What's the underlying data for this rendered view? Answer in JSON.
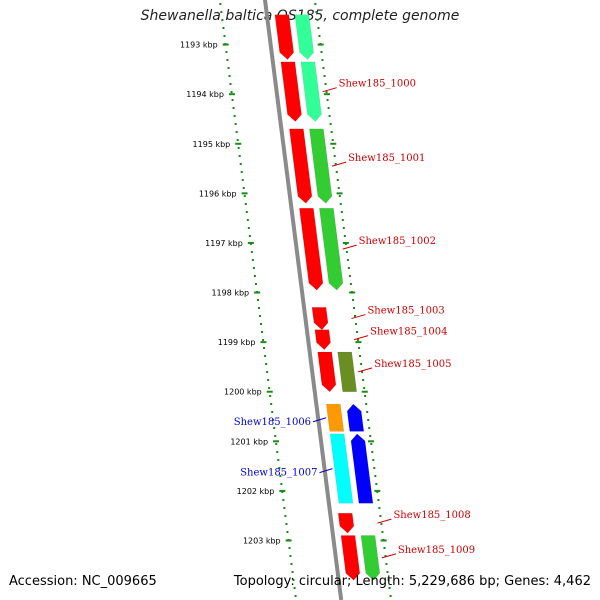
{
  "title": "Shewanella baltica OS185, complete genome",
  "footer": {
    "accession": "Accession: NC_009665",
    "summary": "Topology: circular; Length: 5,229,686 bp; Genes: 4,462"
  },
  "colors": {
    "backbone": "#8a8a8a",
    "tick": "#1a8a1a",
    "label_red": "#cc0000",
    "label_blue": "#0000cc"
  },
  "scale": {
    "unit": "kbp",
    "ticks": [
      {
        "kbp": 1193,
        "label": "1193 kbp"
      },
      {
        "kbp": 1194,
        "label": "1194 kbp"
      },
      {
        "kbp": 1195,
        "label": "1195 kbp"
      },
      {
        "kbp": 1196,
        "label": "1196 kbp"
      },
      {
        "kbp": 1197,
        "label": "1197 kbp"
      },
      {
        "kbp": 1198,
        "label": "1198 kbp"
      },
      {
        "kbp": 1199,
        "label": "1199 kbp"
      },
      {
        "kbp": 1200,
        "label": "1200 kbp"
      },
      {
        "kbp": 1201,
        "label": "1201 kbp"
      },
      {
        "kbp": 1202,
        "label": "1202 kbp"
      },
      {
        "kbp": 1203,
        "label": "1203 kbp"
      }
    ]
  },
  "genes": [
    {
      "label": "",
      "track": "red",
      "start": 1192.4,
      "end": 1193.3,
      "color": "#ff0000",
      "dir": "down"
    },
    {
      "label": "",
      "track": "green",
      "start": 1192.4,
      "end": 1193.3,
      "color": "#33ff99",
      "dir": "down"
    },
    {
      "label": "Shew185_1000",
      "track": "red",
      "start": 1193.35,
      "end": 1194.55,
      "color": "#ff0000",
      "dir": "down",
      "label_color": "#cc0000"
    },
    {
      "label": "",
      "track": "green",
      "start": 1193.35,
      "end": 1194.55,
      "color": "#33ff99",
      "dir": "down"
    },
    {
      "label": "Shew185_1001",
      "track": "red",
      "start": 1194.7,
      "end": 1196.2,
      "color": "#ff0000",
      "dir": "down",
      "label_color": "#cc0000"
    },
    {
      "label": "",
      "track": "green",
      "start": 1194.7,
      "end": 1196.2,
      "color": "#33cc33",
      "dir": "down"
    },
    {
      "label": "Shew185_1002",
      "track": "red",
      "start": 1196.3,
      "end": 1197.95,
      "color": "#ff0000",
      "dir": "down",
      "label_color": "#cc0000"
    },
    {
      "label": "",
      "track": "green",
      "start": 1196.3,
      "end": 1197.95,
      "color": "#33cc33",
      "dir": "down"
    },
    {
      "label": "Shew185_1003",
      "track": "red",
      "start": 1198.3,
      "end": 1198.75,
      "color": "#ff0000",
      "dir": "down",
      "label_color": "#cc0000"
    },
    {
      "label": "Shew185_1004",
      "track": "red",
      "start": 1198.75,
      "end": 1199.15,
      "color": "#ff0000",
      "dir": "down",
      "label_color": "#cc0000"
    },
    {
      "label": "Shew185_1005",
      "track": "red",
      "start": 1199.2,
      "end": 1200.0,
      "color": "#ff0000",
      "dir": "down",
      "label_color": "#cc0000"
    },
    {
      "label": "",
      "track": "green",
      "start": 1199.2,
      "end": 1200.0,
      "color": "#6b8e23",
      "dir": "none"
    },
    {
      "label": "Shew185_1006",
      "track": "blue",
      "start": 1200.25,
      "end": 1200.8,
      "color": "#ff9900",
      "dir": "none",
      "label_color": "#0000cc"
    },
    {
      "label": "",
      "track": "navy",
      "start": 1200.25,
      "end": 1200.8,
      "color": "#0000ff",
      "dir": "up"
    },
    {
      "label": "Shew185_1007",
      "track": "blue",
      "start": 1200.85,
      "end": 1202.25,
      "color": "#00ffff",
      "dir": "none",
      "label_color": "#0000cc"
    },
    {
      "label": "",
      "track": "navy",
      "start": 1200.85,
      "end": 1202.25,
      "color": "#0000ff",
      "dir": "up"
    },
    {
      "label": "Shew185_1008",
      "track": "red",
      "start": 1202.45,
      "end": 1202.85,
      "color": "#ff0000",
      "dir": "down",
      "label_color": "#cc0000"
    },
    {
      "label": "Shew185_1009",
      "track": "red",
      "start": 1202.9,
      "end": 1203.8,
      "color": "#ff0000",
      "dir": "down",
      "label_color": "#cc0000"
    },
    {
      "label": "",
      "track": "green",
      "start": 1202.9,
      "end": 1203.8,
      "color": "#33cc33",
      "dir": "down"
    }
  ]
}
